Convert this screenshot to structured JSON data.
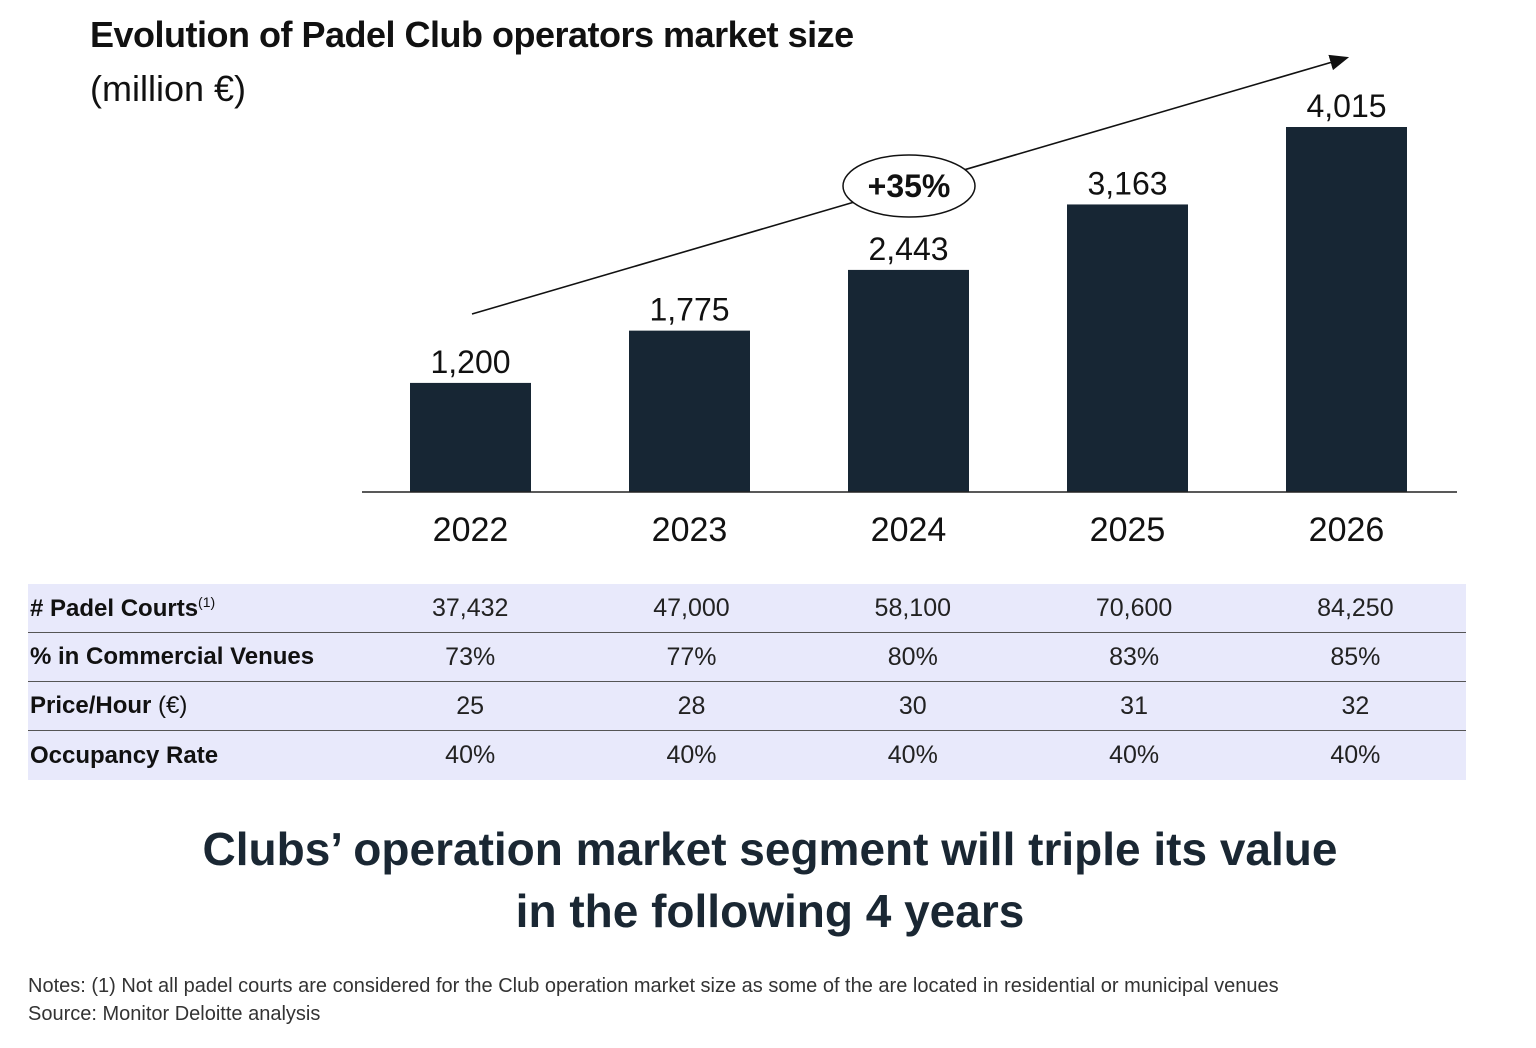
{
  "header": {
    "title": "Evolution of Padel Club operators market size",
    "subtitle": "(million €)"
  },
  "chart_data": {
    "type": "bar",
    "title": "Evolution of Padel Club operators market size",
    "subtitle": "(million €)",
    "categories": [
      "2022",
      "2023",
      "2024",
      "2025",
      "2026"
    ],
    "values": [
      1200,
      1775,
      2443,
      3163,
      4015
    ],
    "value_labels": [
      "1,200",
      "1,775",
      "2,443",
      "3,163",
      "4,015"
    ],
    "ylim": [
      0,
      4015
    ],
    "grid": false,
    "bar_color": "#172634",
    "annotation": {
      "text": "+35%",
      "type": "trend-arrow"
    }
  },
  "table": {
    "rows": [
      {
        "label": "# Padel Courts",
        "sup": "(1)",
        "unit": "",
        "values": [
          "37,432",
          "47,000",
          "58,100",
          "70,600",
          "84,250"
        ]
      },
      {
        "label": "% in Commercial Venues",
        "sup": "",
        "unit": "",
        "values": [
          "73%",
          "77%",
          "80%",
          "83%",
          "85%"
        ]
      },
      {
        "label": "Price/Hour",
        "sup": "",
        "unit": " (€)",
        "values": [
          "25",
          "28",
          "30",
          "31",
          "32"
        ]
      },
      {
        "label": "Occupancy Rate",
        "sup": "",
        "unit": "",
        "values": [
          "40%",
          "40%",
          "40%",
          "40%",
          "40%"
        ]
      }
    ],
    "background": "#e8e9fb"
  },
  "headline": {
    "line1": "Clubs’ operation market segment will triple its value",
    "line2": "in the following 4 years"
  },
  "notes": {
    "note": "Notes: (1) Not all padel courts are considered for the Club operation market size as some of the are located in residential or municipal venues",
    "source": "Source: Monitor Deloitte analysis"
  }
}
